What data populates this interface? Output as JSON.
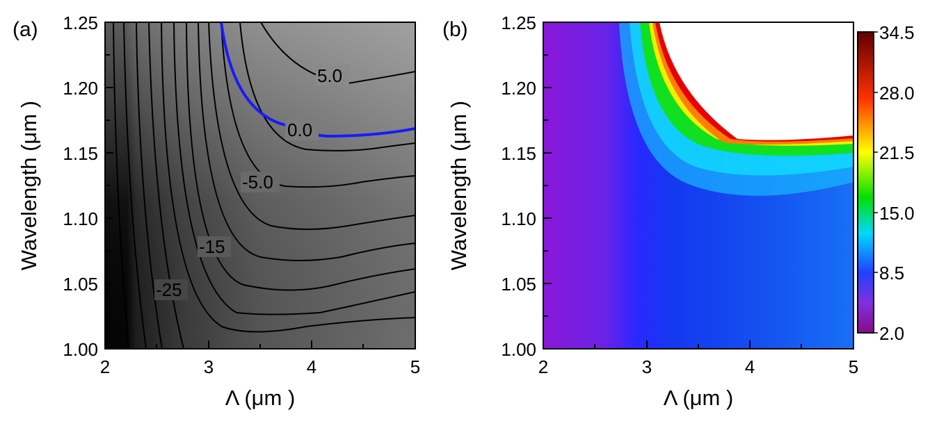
{
  "chart_data": [
    {
      "type": "contour",
      "panel_label": "(a)",
      "xlabel": "Λ (μm )",
      "ylabel": "Wavelength (μm )",
      "xlim": [
        2,
        5
      ],
      "ylim": [
        1.0,
        1.25
      ],
      "xticks": [
        "2",
        "3",
        "4",
        "5"
      ],
      "yticks": [
        "1.00",
        "1.05",
        "1.10",
        "1.15",
        "1.20",
        "1.25"
      ],
      "colormap": "grayscale",
      "contour_labels": [
        {
          "text": "5.0",
          "x": 4.2,
          "y": 1.207
        },
        {
          "text": "0.0",
          "x": 3.8,
          "y": 1.166
        },
        {
          "text": "-5.0",
          "x": 3.35,
          "y": 1.128
        },
        {
          "text": "-15",
          "x": 2.75,
          "y": 1.082
        },
        {
          "text": "-25",
          "x": 2.3,
          "y": 1.047
        }
      ],
      "highlighted_contour": {
        "level": 0.0,
        "color": "#1a1aff"
      }
    },
    {
      "type": "heatmap",
      "panel_label": "(b)",
      "xlabel": "Λ (μm )",
      "ylabel": "Wavelength (μm )",
      "xlim": [
        2,
        5
      ],
      "ylim": [
        1.0,
        1.25
      ],
      "xticks": [
        "2",
        "3",
        "4",
        "5"
      ],
      "yticks": [
        "1.00",
        "1.05",
        "1.10",
        "1.15",
        "1.20",
        "1.25"
      ],
      "colormap": "rainbow",
      "colorbar": {
        "ticks": [
          "34.5",
          "28.0",
          "21.5",
          "15.0",
          "8.5",
          "2.0"
        ],
        "min": 2.0,
        "max": 34.5
      }
    }
  ]
}
